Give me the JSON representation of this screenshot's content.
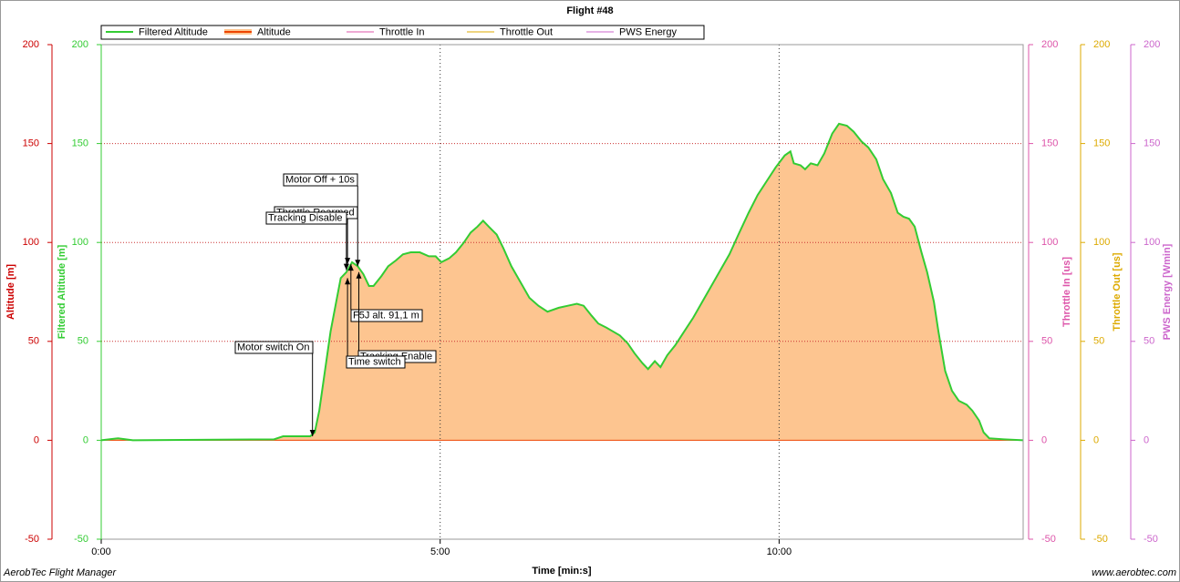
{
  "chart_data": {
    "type": "area",
    "title": "Flight #48",
    "x_label": "Time [min:s]",
    "footer_left": "AerobTec Flight Manager",
    "footer_right": "www.aerobtec.com",
    "xlim": [
      0,
      816
    ],
    "xticks": [
      {
        "value": 0,
        "label": "0:00"
      },
      {
        "value": 300,
        "label": "5:00"
      },
      {
        "value": 600,
        "label": "10:00"
      }
    ],
    "xgrid": [
      300,
      600
    ],
    "ygrid": [
      50,
      100,
      150
    ],
    "y_axes": [
      {
        "label": "Altitude [m]",
        "color": "#cc0000",
        "ylim": [
          -50,
          200
        ],
        "yticks": [
          -50,
          0,
          50,
          100,
          150,
          200
        ]
      },
      {
        "label": "Filtered Altitude [m]",
        "color": "#33cc33",
        "ylim": [
          -50,
          200
        ],
        "yticks": [
          -50,
          0,
          50,
          100,
          150,
          200
        ]
      },
      {
        "label": "Throttle In [us]",
        "color": "#dd55aa",
        "ylim": [
          -50,
          200
        ],
        "yticks": [
          -50,
          0,
          50,
          100,
          150,
          200
        ]
      },
      {
        "label": "Throttle Out [us]",
        "color": "#ddaa00",
        "ylim": [
          -50,
          200
        ],
        "yticks": [
          -50,
          0,
          50,
          100,
          150,
          200
        ]
      },
      {
        "label": "PWS Energy [Wmin]",
        "color": "#cc66cc",
        "ylim": [
          -50,
          200
        ],
        "yticks": [
          -50,
          0,
          50,
          100,
          150,
          200
        ]
      }
    ],
    "x": [
      0,
      15,
      28,
      153,
      161,
      185,
      189,
      193,
      198,
      203,
      208,
      212,
      217,
      222,
      227,
      232,
      237,
      241,
      248,
      254,
      261,
      267,
      274,
      282,
      290,
      296,
      301,
      308,
      314,
      321,
      327,
      333,
      338,
      343,
      350,
      356,
      363,
      371,
      379,
      387,
      395,
      405,
      413,
      421,
      427,
      434,
      440,
      447,
      453,
      459,
      466,
      472,
      479,
      484,
      490,
      495,
      501,
      508,
      516,
      524,
      532,
      540,
      548,
      556,
      564,
      573,
      581,
      589,
      597,
      605,
      610,
      613,
      619,
      623,
      628,
      634,
      640,
      647,
      653,
      660,
      666,
      673,
      679,
      686,
      692,
      699,
      705,
      710,
      715,
      720,
      726,
      731,
      737,
      741,
      747,
      753,
      759,
      766,
      771,
      777,
      781,
      786,
      799,
      816
    ],
    "series": [
      {
        "name": "Filtered Altitude",
        "color": "#33cc33",
        "axis": 1,
        "values": [
          0,
          1,
          0,
          0.5,
          2,
          2,
          4,
          15,
          35,
          55,
          70,
          82,
          85,
          90,
          88,
          84,
          78,
          78,
          83,
          88,
          91,
          94,
          95,
          95,
          93,
          93,
          90,
          92,
          95,
          100,
          105,
          108,
          111,
          108,
          104,
          97,
          88,
          80,
          72,
          68,
          65,
          67,
          68,
          69,
          68,
          63,
          59,
          57,
          55,
          53,
          49,
          44,
          39,
          36,
          40,
          37,
          43,
          48,
          55,
          62,
          70,
          78,
          86,
          94,
          104,
          115,
          124,
          131,
          138,
          144,
          146,
          140,
          139,
          137,
          140,
          139,
          145,
          155,
          160,
          159,
          156,
          151,
          148,
          142,
          132,
          125,
          115,
          113,
          112,
          108,
          95,
          85,
          70,
          55,
          35,
          25,
          20,
          18,
          15,
          10,
          4,
          1,
          0.5,
          0
        ]
      },
      {
        "name": "Altitude",
        "color": "#ee4400",
        "fill": "#fdc590",
        "axis": 0,
        "values": [
          0,
          1,
          0,
          0.5,
          2,
          2,
          4,
          15,
          35,
          55,
          70,
          82,
          85,
          90,
          88,
          84,
          78,
          78,
          83,
          88,
          91,
          94,
          95,
          95,
          93,
          93,
          90,
          92,
          95,
          100,
          105,
          108,
          111,
          108,
          104,
          97,
          88,
          80,
          72,
          68,
          65,
          67,
          68,
          69,
          68,
          63,
          59,
          57,
          55,
          53,
          49,
          44,
          39,
          36,
          40,
          37,
          43,
          48,
          55,
          62,
          70,
          78,
          86,
          94,
          104,
          115,
          124,
          131,
          138,
          144,
          146,
          140,
          139,
          137,
          140,
          139,
          145,
          155,
          160,
          159,
          156,
          151,
          148,
          142,
          132,
          125,
          115,
          113,
          112,
          108,
          95,
          85,
          70,
          55,
          35,
          25,
          20,
          18,
          15,
          10,
          4,
          1,
          0.5,
          0
        ]
      }
    ],
    "legend_only": [
      {
        "name": "Throttle In",
        "color": "#dd55aa"
      },
      {
        "name": "Throttle Out",
        "color": "#ddaa00"
      },
      {
        "name": "PWS Energy",
        "color": "#cc66cc"
      }
    ],
    "annotations": [
      {
        "text": "Motor switch On",
        "x": 187,
        "y": 2
      },
      {
        "text": "Motor Off + 10s",
        "x": 227,
        "y": 88
      },
      {
        "text": "Throttle Rearmed",
        "x": 218,
        "y": 89
      },
      {
        "text": "Tracking Disable",
        "x": 217,
        "y": 86
      },
      {
        "text": "F5J alt. 91,1 m",
        "x": 221,
        "y": 89
      },
      {
        "text": "Tracking Enable",
        "x": 228,
        "y": 85
      },
      {
        "text": "Time switch",
        "x": 218,
        "y": 82
      }
    ]
  }
}
